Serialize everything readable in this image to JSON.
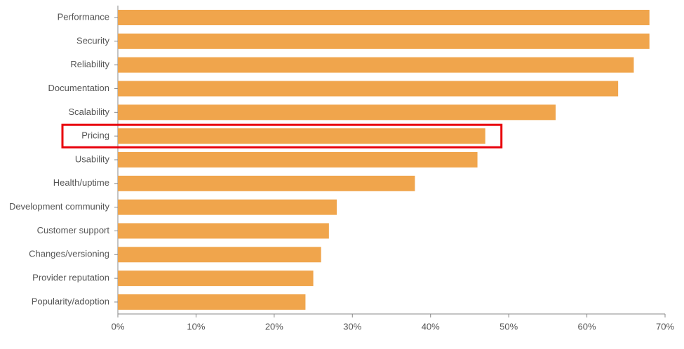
{
  "chart_data": {
    "type": "hbar",
    "categories": [
      "Performance",
      "Security",
      "Reliability",
      "Documentation",
      "Scalability",
      "Pricing",
      "Usability",
      "Health/uptime",
      "Development community",
      "Customer support",
      "Changes/versioning",
      "Provider reputation",
      "Popularity/adoption"
    ],
    "values": [
      68,
      68,
      66,
      64,
      56,
      47,
      46,
      38,
      28,
      27,
      26,
      25,
      24
    ],
    "color": "#f0a54c",
    "xlim": [
      0,
      70
    ],
    "xticks": [
      {
        "value": 0,
        "label": "0%"
      },
      {
        "value": 10,
        "label": "10%"
      },
      {
        "value": 20,
        "label": "20%"
      },
      {
        "value": 30,
        "label": "30%"
      },
      {
        "value": 40,
        "label": "40%"
      },
      {
        "value": 50,
        "label": "50%"
      },
      {
        "value": 60,
        "label": "60%"
      },
      {
        "value": 70,
        "label": "70%"
      }
    ],
    "highlight": "Pricing",
    "highlight_color": "#e8000b"
  }
}
